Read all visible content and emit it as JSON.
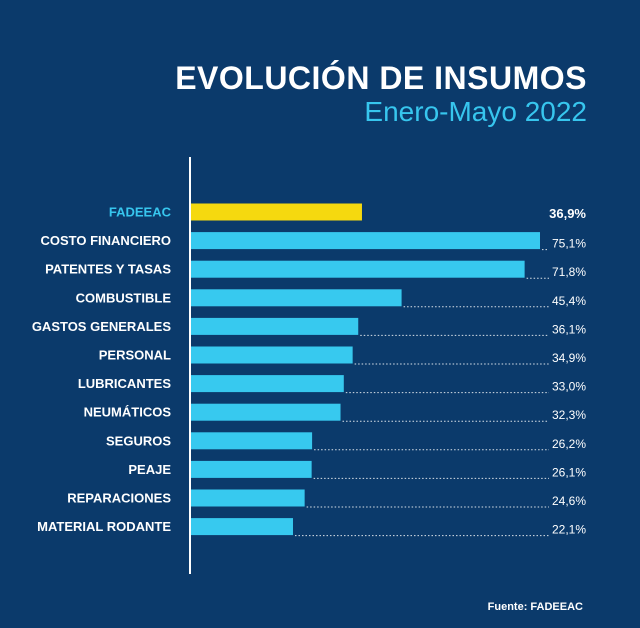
{
  "header": {
    "title": "EVOLUCIÓN DE INSUMOS",
    "subtitle": "Enero-Mayo 2022"
  },
  "footer": {
    "source": "Fuente: FADEEAC"
  },
  "colors": {
    "background": "#0b3a6b",
    "bar": "#37c9ef",
    "highlight_bar": "#f5d90f",
    "highlight_label": "#37c6ee",
    "text": "#ffffff"
  },
  "chart_data": {
    "type": "bar",
    "orientation": "horizontal",
    "categories": [
      "FADEEAC",
      "COSTO FINANCIERO",
      "PATENTES Y TASAS",
      "COMBUSTIBLE",
      "GASTOS GENERALES",
      "PERSONAL",
      "LUBRICANTES",
      "NEUMÁTICOS",
      "SEGUROS",
      "PEAJE",
      "REPARACIONES",
      "MATERIAL RODANTE"
    ],
    "values": [
      36.9,
      75.1,
      71.8,
      45.4,
      36.1,
      34.9,
      33.0,
      32.3,
      26.2,
      26.1,
      24.6,
      22.1
    ],
    "value_labels": [
      "36,9%",
      "75,1%",
      "71,8%",
      "45,4%",
      "36,1%",
      "34,9%",
      "33,0%",
      "32,3%",
      "26,2%",
      "26,1%",
      "24,6%",
      "22,1%"
    ],
    "highlight_index": 0,
    "xlim": [
      0,
      75.1
    ],
    "grid": false,
    "legend": "none"
  }
}
